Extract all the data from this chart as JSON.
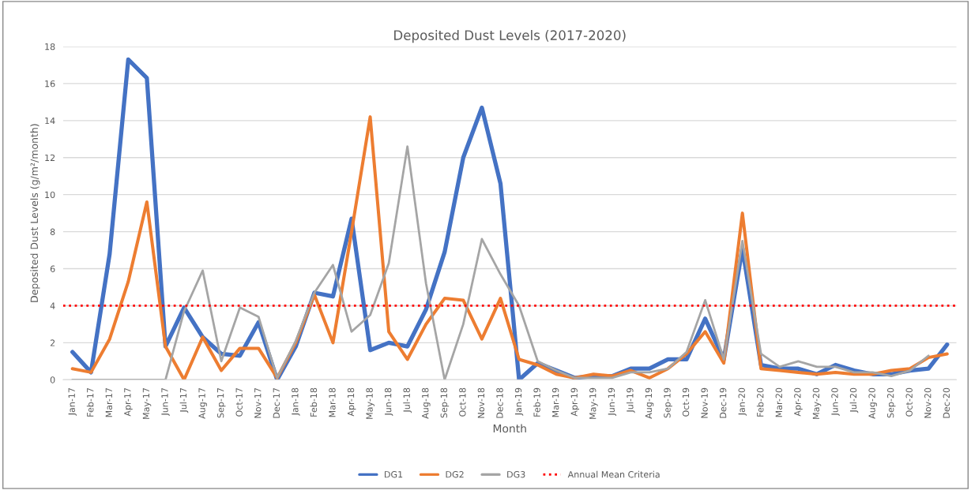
{
  "chart_data": {
    "type": "line",
    "title": "Deposited Dust Levels (2017-2020)",
    "xlabel": "Month",
    "ylabel": "Deposited Dust Levels (g/m²/month)",
    "categories": [
      "Jan-17",
      "Feb-17",
      "Mar-17",
      "Apr-17",
      "May-17",
      "Jun-17",
      "Jul-17",
      "Aug-17",
      "Sep-17",
      "Oct-17",
      "Nov-17",
      "Dec-17",
      "Jan-18",
      "Feb-18",
      "Mar-18",
      "Apr-18",
      "May-18",
      "Jun-18",
      "Jul-18",
      "Aug-18",
      "Sep-18",
      "Oct-18",
      "Nov-18",
      "Dec-18",
      "Jan-19",
      "Feb-19",
      "Mar-19",
      "Apr-19",
      "May-19",
      "Jun-19",
      "Jul-19",
      "Aug-19",
      "Sep-19",
      "Oct-19",
      "Nov-19",
      "Dec-19",
      "Jan-20",
      "Feb-20",
      "Mar-20",
      "Apr-20",
      "May-20",
      "Jun-20",
      "Jul-20",
      "Aug-20",
      "Sep-20",
      "Oct-20",
      "Nov-20",
      "Dec-20"
    ],
    "series": [
      {
        "name": "DG1",
        "color": "#4472c4",
        "values": [
          1.5,
          0.4,
          6.8,
          17.3,
          16.3,
          1.8,
          3.9,
          2.3,
          1.4,
          1.3,
          3.1,
          0.0,
          1.8,
          4.7,
          4.5,
          8.7,
          1.6,
          2.0,
          1.8,
          3.8,
          6.9,
          12.0,
          14.7,
          10.6,
          0.0,
          0.9,
          0.5,
          0.1,
          0.2,
          0.2,
          0.6,
          0.6,
          1.1,
          1.1,
          3.3,
          1.1,
          7.1,
          0.8,
          0.6,
          0.6,
          0.3,
          0.8,
          0.5,
          0.3,
          0.3,
          0.5,
          0.6,
          1.9
        ]
      },
      {
        "name": "DG2",
        "color": "#ed7d31",
        "values": [
          0.6,
          0.4,
          2.2,
          5.3,
          9.6,
          1.8,
          0.0,
          2.3,
          0.5,
          1.7,
          1.7,
          0.1,
          2.0,
          4.6,
          2.0,
          8.0,
          14.2,
          2.6,
          1.1,
          3.0,
          4.4,
          4.3,
          2.2,
          4.4,
          1.1,
          0.8,
          0.3,
          0.1,
          0.3,
          0.2,
          0.5,
          0.1,
          0.6,
          1.4,
          2.6,
          0.9,
          9.0,
          0.6,
          0.5,
          0.4,
          0.3,
          0.4,
          0.3,
          0.3,
          0.5,
          0.6,
          1.2,
          1.4
        ]
      },
      {
        "name": "DG3",
        "color": "#a5a5a5",
        "values": [
          0,
          0,
          0,
          0,
          0,
          0,
          3.7,
          5.9,
          1.0,
          3.9,
          3.4,
          0.1,
          2.1,
          4.7,
          6.2,
          2.6,
          3.5,
          6.3,
          12.6,
          5.2,
          0.0,
          3.0,
          7.6,
          5.7,
          4.0,
          1.0,
          0.5,
          0.1,
          0.1,
          0.1,
          0.4,
          0.4,
          0.6,
          1.5,
          4.3,
          1.1,
          7.5,
          1.4,
          0.7,
          1.0,
          0.7,
          0.7,
          0.4,
          0.4,
          0.2,
          0.5,
          1.3,
          null
        ]
      }
    ],
    "ref_lines": [
      {
        "axis": "y",
        "value": 4,
        "label": "Annual Mean Criteria",
        "color": "#ff0000",
        "line_style": "dotted"
      }
    ],
    "ylim": [
      0,
      18
    ],
    "yticks": [
      0,
      2,
      4,
      6,
      8,
      10,
      12,
      14,
      16,
      18
    ],
    "grid": "y",
    "legend": "bottom"
  }
}
